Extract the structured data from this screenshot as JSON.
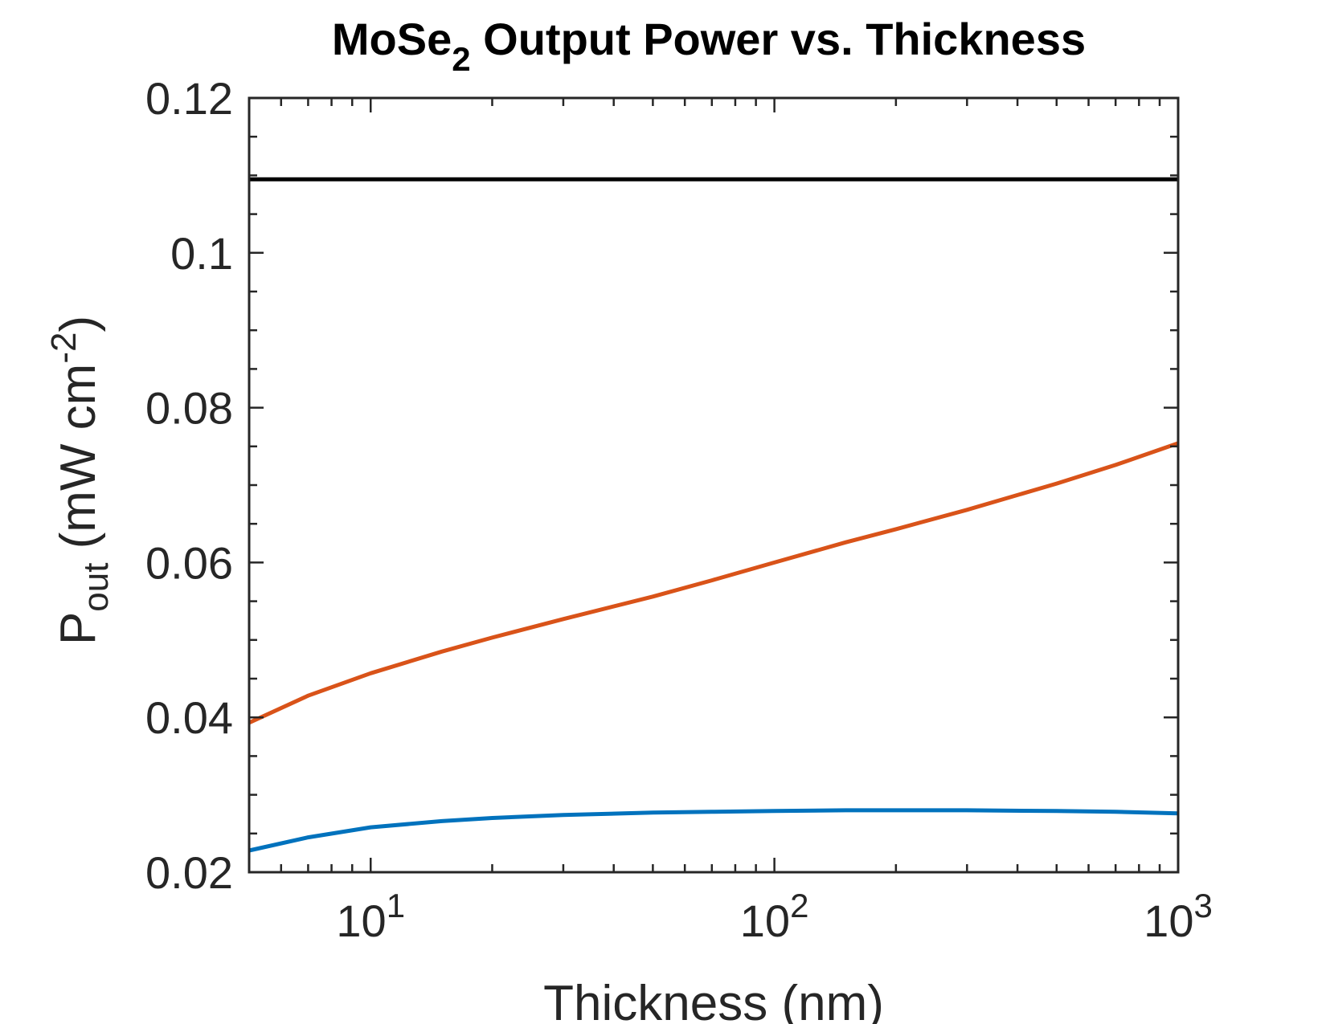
{
  "chart_data": {
    "type": "line",
    "title": {
      "prefix": "MoSe",
      "subscript": "2",
      "suffix": " Output Power vs. Thickness"
    },
    "xlabel": "Thickness (nm)",
    "ylabel": {
      "main": "P",
      "subscript": "out",
      "unit_prefix": " (mW cm",
      "superscript": "-2",
      "unit_suffix": ")"
    },
    "xscale": "log",
    "xlim": [
      5,
      1000
    ],
    "ylim": [
      0.02,
      0.12
    ],
    "x_ticks": [
      {
        "value": 10,
        "base": "10",
        "exp": "1"
      },
      {
        "value": 100,
        "base": "10",
        "exp": "2"
      },
      {
        "value": 1000,
        "base": "10",
        "exp": "3"
      }
    ],
    "y_ticks": [
      {
        "value": 0.02,
        "label": "0.02"
      },
      {
        "value": 0.04,
        "label": "0.04"
      },
      {
        "value": 0.06,
        "label": "0.06"
      },
      {
        "value": 0.08,
        "label": "0.08"
      },
      {
        "value": 0.1,
        "label": "0.1"
      },
      {
        "value": 0.12,
        "label": "0.12"
      }
    ],
    "grid": false,
    "box": true,
    "series": [
      {
        "color": "#000000",
        "x": [
          5,
          1000
        ],
        "y": [
          0.1095,
          0.1095
        ]
      },
      {
        "color": "#D95319",
        "x": [
          5,
          7,
          10,
          15,
          20,
          30,
          50,
          70,
          100,
          150,
          200,
          300,
          500,
          700,
          1000
        ],
        "y": [
          0.0393,
          0.0428,
          0.0457,
          0.0485,
          0.0503,
          0.0527,
          0.0556,
          0.0577,
          0.06,
          0.0626,
          0.0643,
          0.0668,
          0.0702,
          0.0726,
          0.0754
        ]
      },
      {
        "color": "#0072BD",
        "x": [
          5,
          7,
          10,
          15,
          20,
          30,
          50,
          70,
          100,
          150,
          200,
          300,
          500,
          700,
          1000
        ],
        "y": [
          0.0228,
          0.0245,
          0.0258,
          0.0266,
          0.027,
          0.0274,
          0.0277,
          0.0278,
          0.0279,
          0.028,
          0.028,
          0.028,
          0.0279,
          0.0278,
          0.0276
        ]
      }
    ]
  }
}
